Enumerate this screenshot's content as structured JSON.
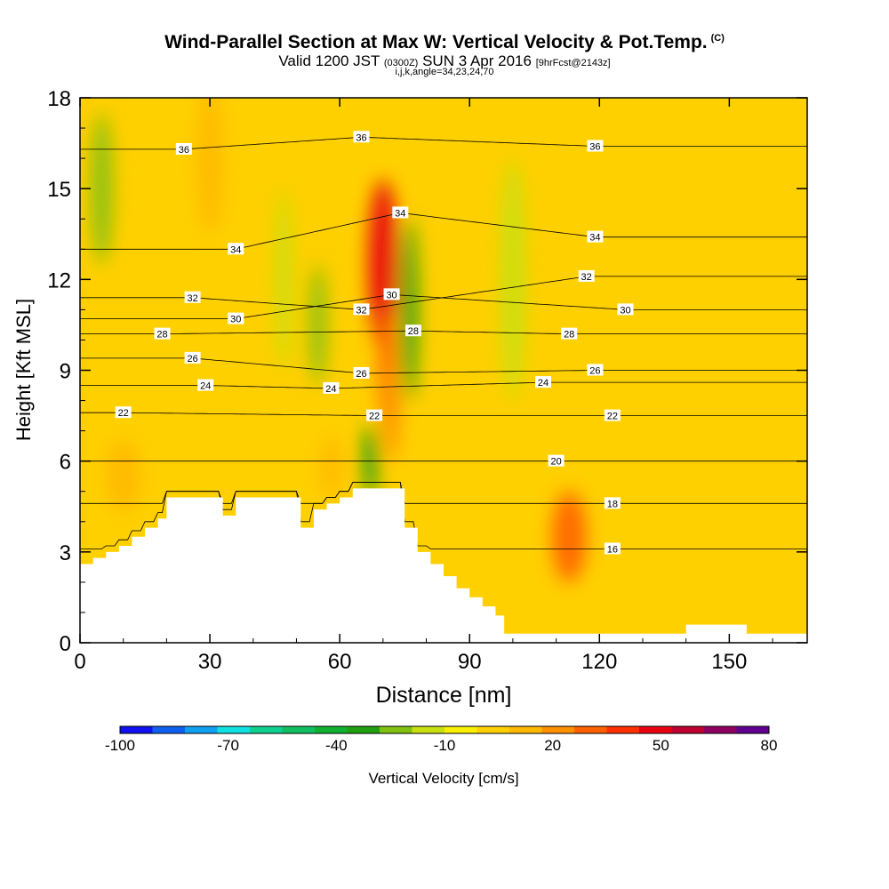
{
  "header": {
    "title": "Wind-Parallel Section at Max W: Vertical Velocity & Pot.Temp.",
    "copyright": "(C)",
    "valid_prefix": "Valid 1200 JST",
    "valid_utc": "(0300Z)",
    "valid_date": "SUN 3 Apr 2016",
    "forecast": "[9hrFcst@2143z]",
    "indices": "i,j,k,angle=34,23,24,70"
  },
  "chart_data": {
    "type": "heatmap",
    "xlabel": "Distance [nm]",
    "ylabel": "Height [Kft MSL]",
    "xlim": [
      0,
      168
    ],
    "ylim": [
      0,
      18
    ],
    "x_ticks": [
      0,
      30,
      60,
      90,
      120,
      150
    ],
    "y_ticks": [
      0,
      3,
      6,
      9,
      12,
      15,
      18
    ],
    "colorbar": {
      "label": "Vertical Velocity [cm/s]",
      "tick_labels": [
        "-100",
        "-70",
        "-40",
        "-10",
        "20",
        "50",
        "80"
      ],
      "tick_values": [
        -100,
        -70,
        -40,
        -10,
        20,
        50,
        80
      ],
      "range": [
        -100,
        80
      ],
      "step": 10,
      "colors": [
        "#1010f0",
        "#1060f0",
        "#10a0f0",
        "#10e0e0",
        "#10d090",
        "#10c060",
        "#10b030",
        "#20a010",
        "#80c010",
        "#c8e010",
        "#f8f000",
        "#ffd000",
        "#ffb800",
        "#ff9000",
        "#ff6000",
        "#ff3000",
        "#e80010",
        "#c00030",
        "#900060",
        "#600090"
      ]
    },
    "terrain_profile": [
      [
        0,
        2.6
      ],
      [
        3,
        2.8
      ],
      [
        6,
        3.0
      ],
      [
        9,
        3.2
      ],
      [
        12,
        3.5
      ],
      [
        15,
        3.8
      ],
      [
        18,
        4.1
      ],
      [
        20,
        4.8
      ],
      [
        30,
        4.8
      ],
      [
        33,
        4.2
      ],
      [
        36,
        4.8
      ],
      [
        48,
        4.8
      ],
      [
        51,
        3.8
      ],
      [
        54,
        4.4
      ],
      [
        57,
        4.6
      ],
      [
        60,
        4.8
      ],
      [
        63,
        5.1
      ],
      [
        72,
        5.1
      ],
      [
        75,
        3.8
      ],
      [
        78,
        3.0
      ],
      [
        81,
        2.6
      ],
      [
        84,
        2.2
      ],
      [
        87,
        1.8
      ],
      [
        90,
        1.5
      ],
      [
        93,
        1.2
      ],
      [
        96,
        0.9
      ],
      [
        98,
        0.3
      ],
      [
        138,
        0.3
      ],
      [
        140,
        0.6
      ],
      [
        152,
        0.6
      ],
      [
        154,
        0.3
      ],
      [
        168,
        0.3
      ]
    ],
    "theta_contour_labels": [
      {
        "x": 24,
        "y": 16.3,
        "text": "36"
      },
      {
        "x": 65,
        "y": 16.7,
        "text": "36"
      },
      {
        "x": 119,
        "y": 16.4,
        "text": "36"
      },
      {
        "x": 74,
        "y": 14.2,
        "text": "34"
      },
      {
        "x": 36,
        "y": 13.0,
        "text": "34"
      },
      {
        "x": 119,
        "y": 13.4,
        "text": "34"
      },
      {
        "x": 117,
        "y": 12.1,
        "text": "32"
      },
      {
        "x": 26,
        "y": 11.4,
        "text": "32"
      },
      {
        "x": 65,
        "y": 11.0,
        "text": "32"
      },
      {
        "x": 72,
        "y": 11.5,
        "text": "30"
      },
      {
        "x": 36,
        "y": 10.7,
        "text": "30"
      },
      {
        "x": 126,
        "y": 11.0,
        "text": "30"
      },
      {
        "x": 77,
        "y": 10.3,
        "text": "28"
      },
      {
        "x": 19,
        "y": 10.2,
        "text": "28"
      },
      {
        "x": 113,
        "y": 10.2,
        "text": "28"
      },
      {
        "x": 26,
        "y": 9.4,
        "text": "26"
      },
      {
        "x": 65,
        "y": 8.9,
        "text": "26"
      },
      {
        "x": 119,
        "y": 9.0,
        "text": "26"
      },
      {
        "x": 29,
        "y": 8.5,
        "text": "24"
      },
      {
        "x": 58,
        "y": 8.4,
        "text": "24"
      },
      {
        "x": 107,
        "y": 8.6,
        "text": "24"
      },
      {
        "x": 10,
        "y": 7.6,
        "text": "22"
      },
      {
        "x": 68,
        "y": 7.5,
        "text": "22"
      },
      {
        "x": 123,
        "y": 7.5,
        "text": "22"
      },
      {
        "x": 110,
        "y": 6.0,
        "text": "20"
      },
      {
        "x": 123,
        "y": 4.6,
        "text": "18"
      },
      {
        "x": 123,
        "y": 3.1,
        "text": "16"
      }
    ],
    "velocity_features": [
      {
        "x": 70,
        "y": 12.5,
        "value": 60,
        "rx": 3.5,
        "ry": 2.8
      },
      {
        "x": 71,
        "y": 9.0,
        "value": 45,
        "rx": 2.0,
        "ry": 2.0
      },
      {
        "x": 72,
        "y": 7.5,
        "value": 35,
        "rx": 1.8,
        "ry": 1.5
      },
      {
        "x": 113,
        "y": 3.5,
        "value": 40,
        "rx": 4.0,
        "ry": 1.5
      },
      {
        "x": 30,
        "y": 16.0,
        "value": 25,
        "rx": 3.0,
        "ry": 2.5
      },
      {
        "x": 10,
        "y": 5.5,
        "value": 20,
        "rx": 4.0,
        "ry": 1.2
      },
      {
        "x": 58,
        "y": 5.8,
        "value": 25,
        "rx": 2.5,
        "ry": 1.0
      },
      {
        "x": 76,
        "y": 11.0,
        "value": -30,
        "rx": 2.0,
        "ry": 3.0
      },
      {
        "x": 67,
        "y": 6.0,
        "value": -30,
        "rx": 1.8,
        "ry": 1.2
      },
      {
        "x": 5,
        "y": 15.0,
        "value": -20,
        "rx": 2.5,
        "ry": 2.5
      },
      {
        "x": 55,
        "y": 10.5,
        "value": -20,
        "rx": 2.0,
        "ry": 2.0
      },
      {
        "x": 47,
        "y": 12.0,
        "value": -10,
        "rx": 2.0,
        "ry": 3.0
      },
      {
        "x": 100,
        "y": 12.0,
        "value": -10,
        "rx": 3.0,
        "ry": 4.0
      }
    ]
  }
}
